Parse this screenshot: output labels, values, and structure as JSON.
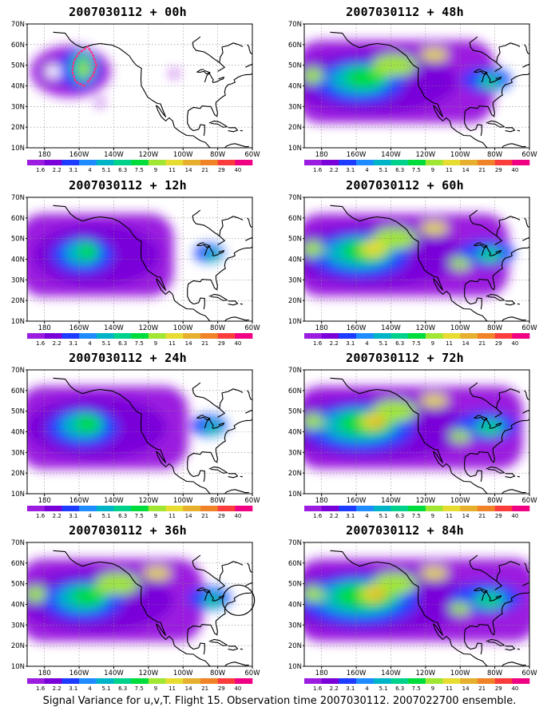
{
  "panels": [
    {
      "id": "p00",
      "title": "2007030112 + 00h",
      "lead_hours": 0
    },
    {
      "id": "p48",
      "title": "2007030112 + 48h",
      "lead_hours": 48
    },
    {
      "id": "p12",
      "title": "2007030112 + 12h",
      "lead_hours": 12
    },
    {
      "id": "p60",
      "title": "2007030112 + 60h",
      "lead_hours": 60
    },
    {
      "id": "p24",
      "title": "2007030112 + 24h",
      "lead_hours": 24
    },
    {
      "id": "p72",
      "title": "2007030112 + 72h",
      "lead_hours": 72
    },
    {
      "id": "p36",
      "title": "2007030112 + 36h",
      "lead_hours": 36
    },
    {
      "id": "p84",
      "title": "2007030112 + 84h",
      "lead_hours": 84
    }
  ],
  "axes": {
    "lat_labels": [
      "70N",
      "60N",
      "50N",
      "40N",
      "30N",
      "20N",
      "10N"
    ],
    "lon_labels": [
      "180",
      "160W",
      "140W",
      "120W",
      "100W",
      "80W",
      "60W"
    ]
  },
  "colorbar": {
    "levels": [
      "1.6",
      "2.2",
      "3.1",
      "4",
      "5.1",
      "6.3",
      "7.5",
      "9",
      "11",
      "14",
      "21",
      "29",
      "40"
    ],
    "colors": [
      "#9B1EE0",
      "#7A00D9",
      "#1E3CFF",
      "#1E8CFF",
      "#00B4C8",
      "#00D28C",
      "#00DC3C",
      "#A0E632",
      "#E6DC32",
      "#E6AF2D",
      "#F08228",
      "#FA3C3C",
      "#F00082"
    ]
  },
  "caption": "Signal Variance for u,v,T. Flight 15. Observation time 2007030112. 2007022700 ensemble."
}
